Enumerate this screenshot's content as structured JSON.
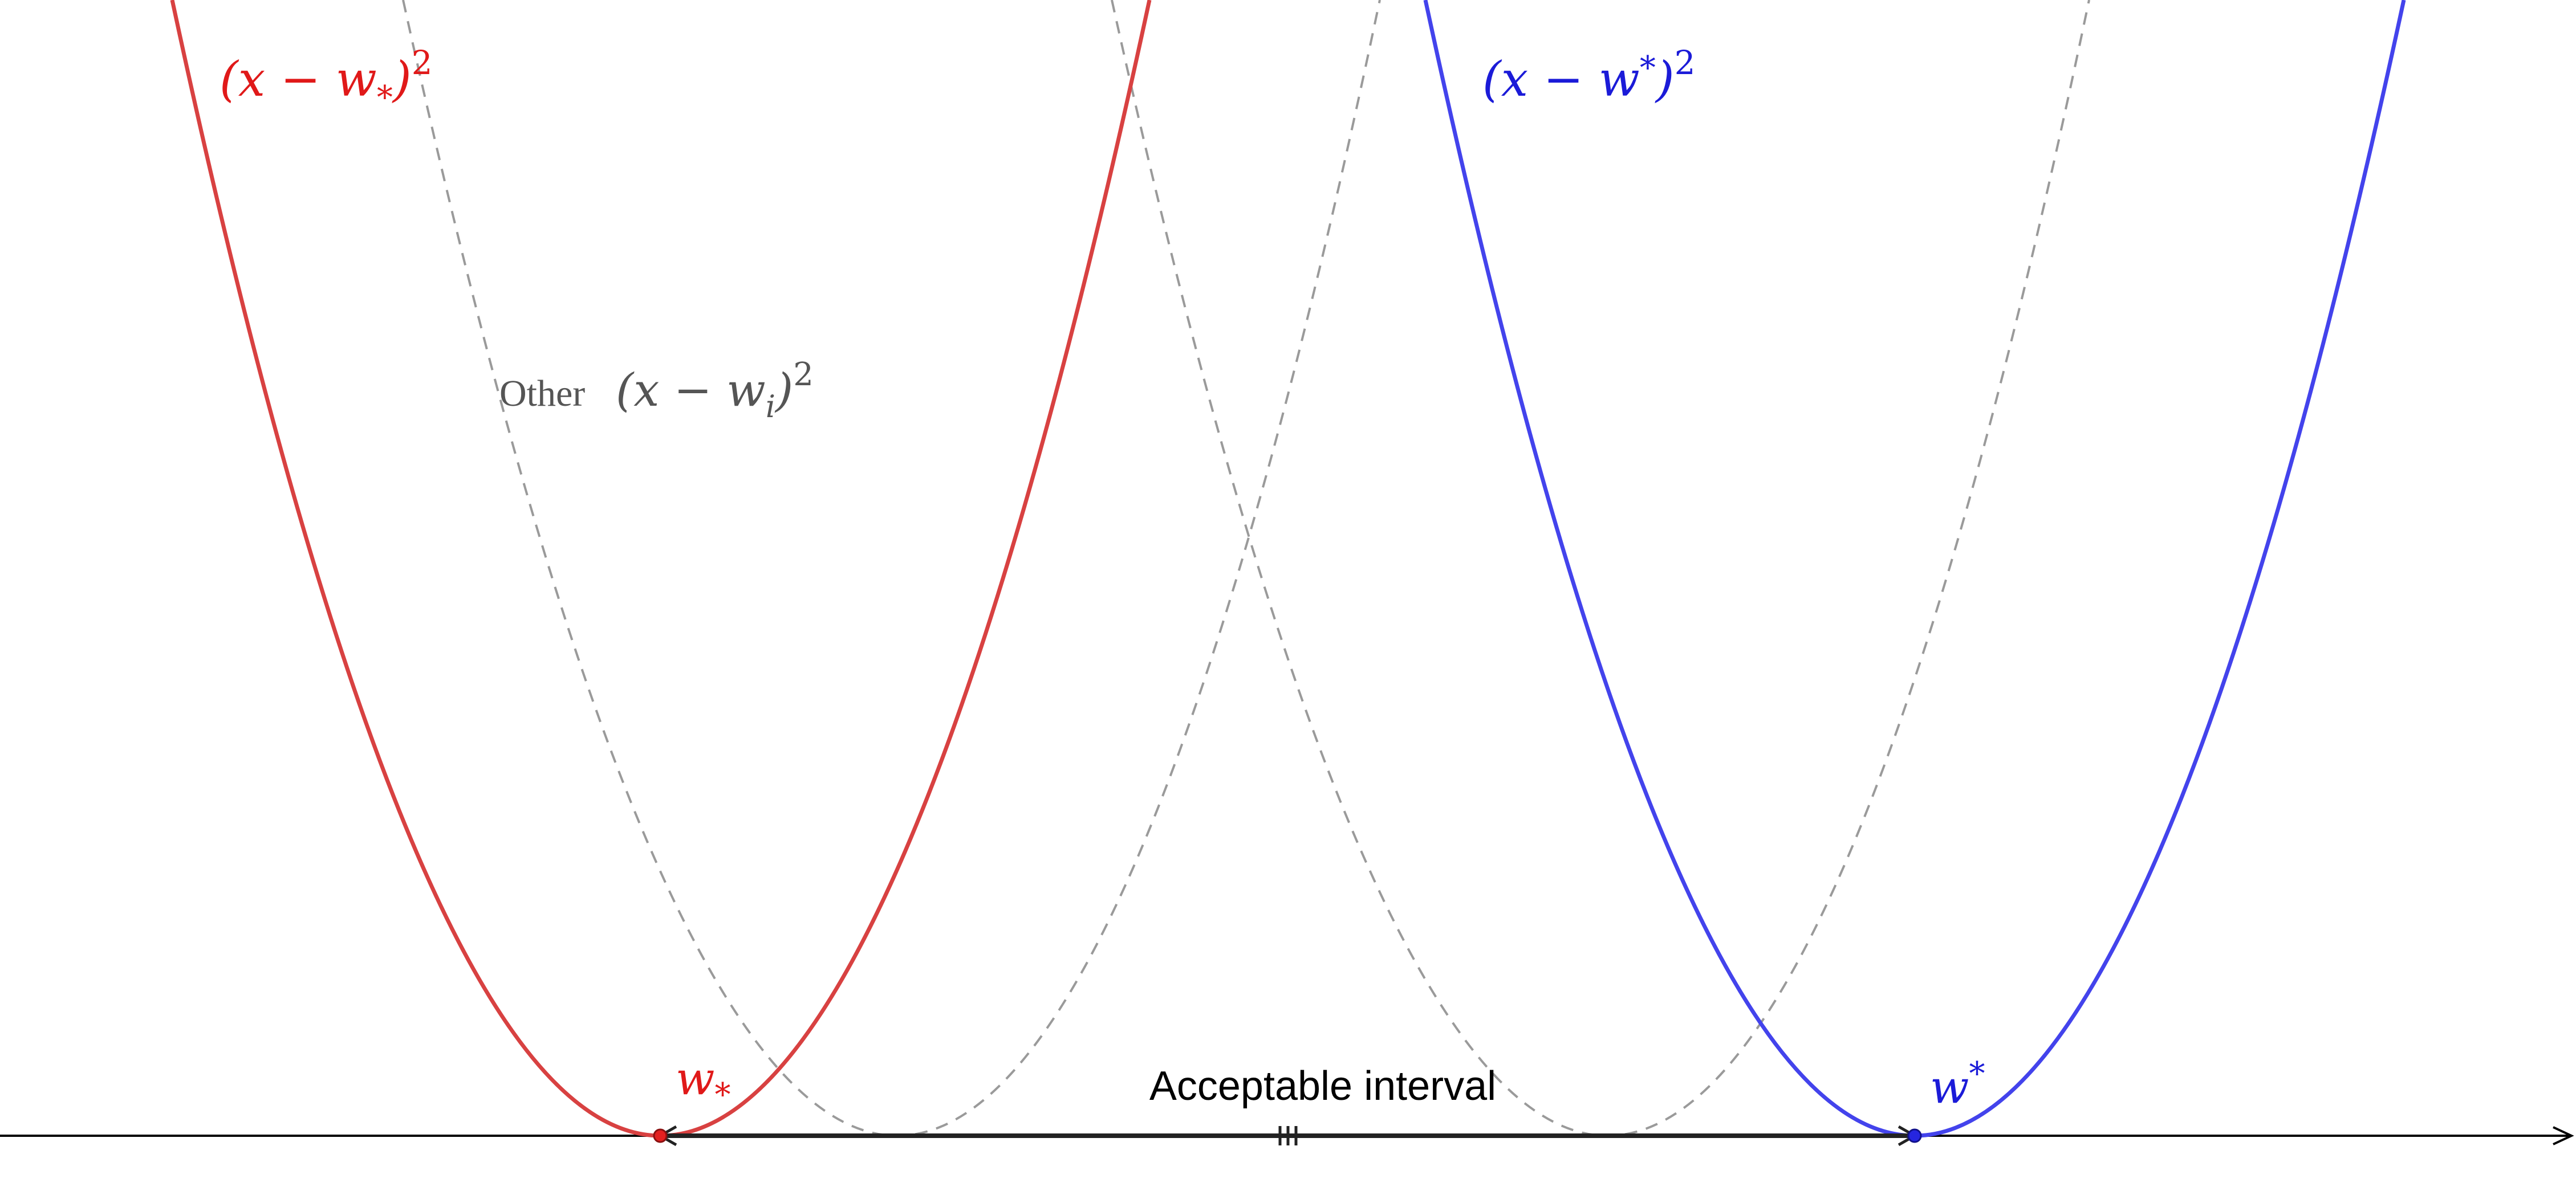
{
  "diagram": {
    "colors": {
      "red": "#d84141",
      "red_label": "#e01919",
      "blue": "#4343ec",
      "blue_label": "#1b1bd8",
      "gray_curve": "#9a9a9a",
      "gray_label": "#555555",
      "axis": "#000000",
      "interval": "#222222"
    },
    "labels": {
      "red_curve": {
        "open": "(x − w",
        "sub": "*",
        "close": ")",
        "exp": "2"
      },
      "blue_curve": {
        "open": "(x − w",
        "sup": "*",
        "close": ")",
        "exp": "2"
      },
      "other_prefix": "Other",
      "other_curve": {
        "open": "(x − w",
        "sub": "i",
        "close": ")",
        "exp": "2"
      },
      "w_lower": {
        "base": "w",
        "sub": "*"
      },
      "w_upper": {
        "base": "w",
        "sup": "*"
      },
      "interval": "Acceptable interval"
    },
    "curves": [
      {
        "id": "red-parabola",
        "vertex": "w_lower",
        "style": "solid",
        "color": "red"
      },
      {
        "id": "gray-parabola-1",
        "vertex": "other",
        "style": "dashed",
        "color": "gray_curve"
      },
      {
        "id": "gray-parabola-2",
        "vertex": "other",
        "style": "dashed",
        "color": "gray_curve"
      },
      {
        "id": "blue-parabola",
        "vertex": "w_upper",
        "style": "solid",
        "color": "blue"
      }
    ]
  }
}
